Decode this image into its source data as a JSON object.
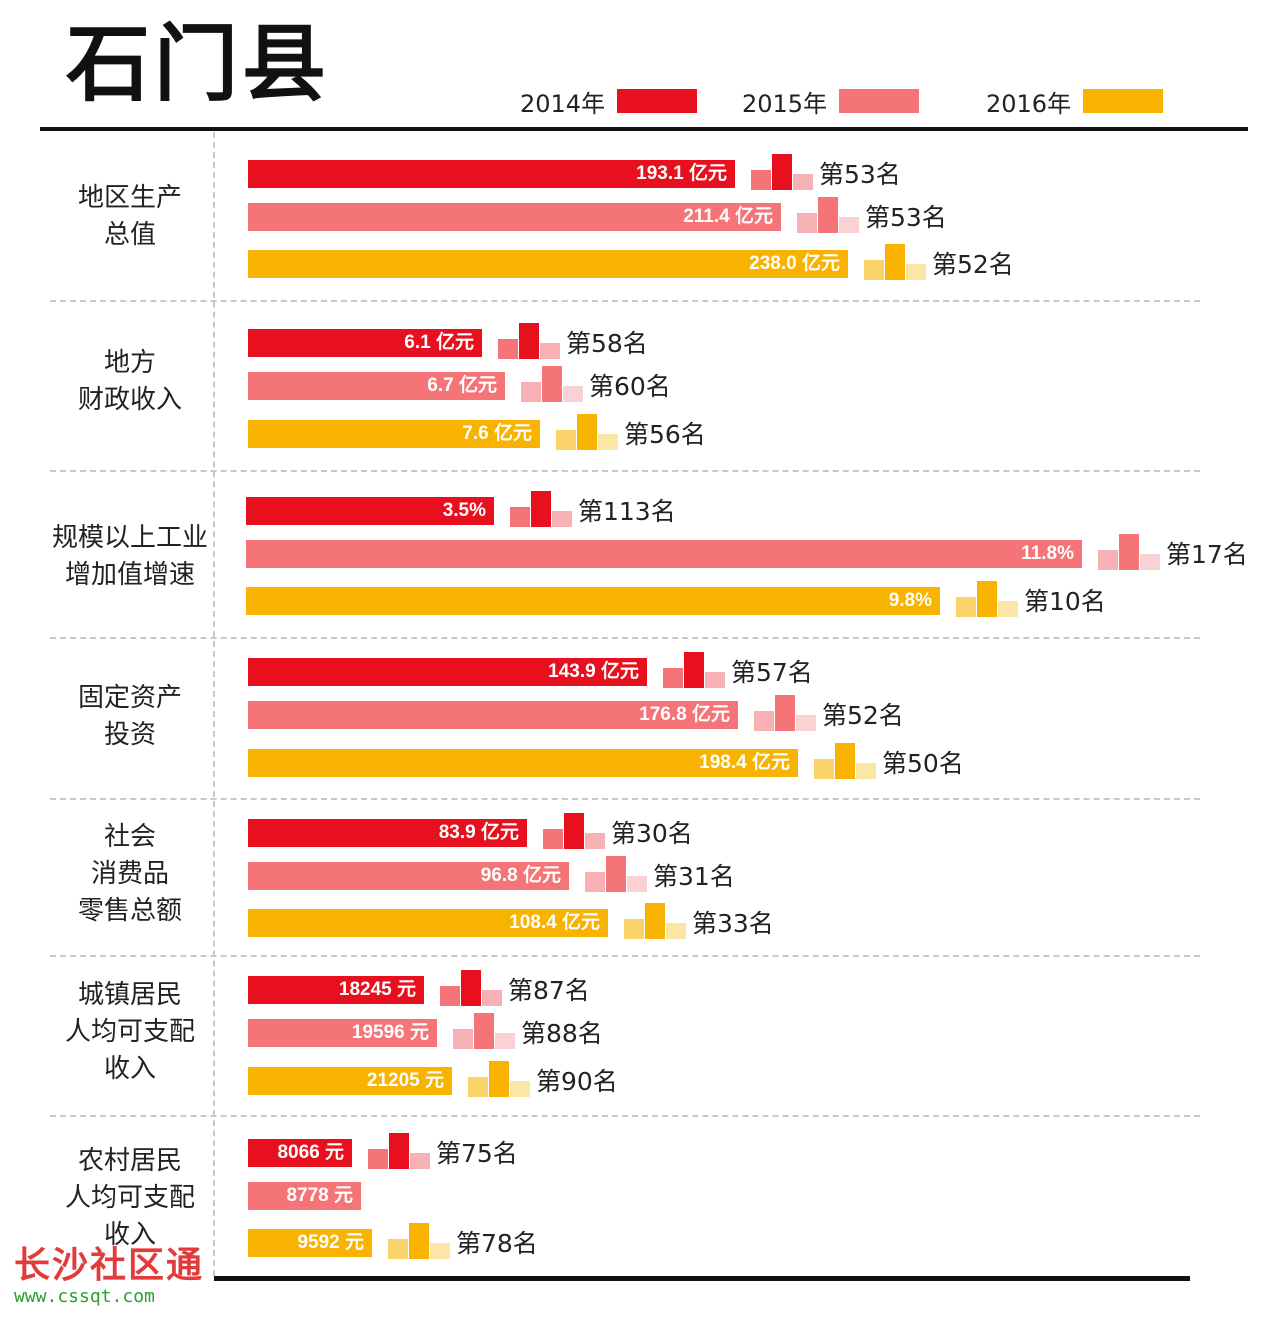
{
  "title": "石门县",
  "colors": {
    "2014": "#e8101e",
    "2015": "#f47478",
    "2016": "#f7b300",
    "2014_light": "#f47478",
    "2014_pale": "#f7b0b4",
    "2015_light": "#f7b0b4",
    "2015_pale": "#fbd2d4",
    "2016_light": "#fad46a",
    "2016_pale": "#fce6a6"
  },
  "legend": [
    {
      "label": "2014年",
      "key": "2014"
    },
    {
      "label": "2015年",
      "key": "2015"
    },
    {
      "label": "2016年",
      "key": "2016"
    }
  ],
  "chart_data": {
    "type": "bar",
    "orientation": "horizontal",
    "title": "石门县",
    "series_names": [
      "2014年",
      "2015年",
      "2016年"
    ],
    "groups": [
      {
        "category": "地区生产总值",
        "label_lines": [
          "地区生产",
          "总值"
        ],
        "rows": [
          {
            "year": "2014",
            "value": 193.1,
            "label": "193.1 亿元",
            "rank": "第53名"
          },
          {
            "year": "2015",
            "value": 211.4,
            "label": "211.4 亿元",
            "rank": "第53名"
          },
          {
            "year": "2016",
            "value": 238.0,
            "label": "238.0 亿元",
            "rank": "第52名"
          }
        ]
      },
      {
        "category": "地方财政收入",
        "label_lines": [
          "地方",
          "财政收入"
        ],
        "rows": [
          {
            "year": "2014",
            "value": 6.1,
            "label": "6.1 亿元",
            "rank": "第58名"
          },
          {
            "year": "2015",
            "value": 6.7,
            "label": "6.7 亿元",
            "rank": "第60名"
          },
          {
            "year": "2016",
            "value": 7.6,
            "label": "7.6 亿元",
            "rank": "第56名"
          }
        ]
      },
      {
        "category": "规模以上工业增加值增速",
        "label_lines": [
          "规模以上工业",
          "增加值增速"
        ],
        "rows": [
          {
            "year": "2014",
            "value": 3.5,
            "label": "3.5%",
            "rank": "第113名"
          },
          {
            "year": "2015",
            "value": 11.8,
            "label": "11.8%",
            "rank": "第17名"
          },
          {
            "year": "2016",
            "value": 9.8,
            "label": "9.8%",
            "rank": "第10名"
          }
        ]
      },
      {
        "category": "固定资产投资",
        "label_lines": [
          "固定资产",
          "投资"
        ],
        "rows": [
          {
            "year": "2014",
            "value": 143.9,
            "label": "143.9 亿元",
            "rank": "第57名"
          },
          {
            "year": "2015",
            "value": 176.8,
            "label": "176.8 亿元",
            "rank": "第52名"
          },
          {
            "year": "2016",
            "value": 198.4,
            "label": "198.4 亿元",
            "rank": "第50名"
          }
        ]
      },
      {
        "category": "社会消费品零售总额",
        "label_lines": [
          "社会",
          "消费品",
          "零售总额"
        ],
        "rows": [
          {
            "year": "2014",
            "value": 83.9,
            "label": "83.9 亿元",
            "rank": "第30名"
          },
          {
            "year": "2015",
            "value": 96.8,
            "label": "96.8 亿元",
            "rank": "第31名"
          },
          {
            "year": "2016",
            "value": 108.4,
            "label": "108.4 亿元",
            "rank": "第33名"
          }
        ]
      },
      {
        "category": "城镇居民人均可支配收入",
        "label_lines": [
          "城镇居民",
          "人均可支配",
          "收入"
        ],
        "rows": [
          {
            "year": "2014",
            "value": 18245,
            "label": "18245 元",
            "rank": "第87名"
          },
          {
            "year": "2015",
            "value": 19596,
            "label": "19596 元",
            "rank": "第88名"
          },
          {
            "year": "2016",
            "value": 21205,
            "label": "21205 元",
            "rank": "第90名"
          }
        ]
      },
      {
        "category": "农村居民人均可支配收入",
        "label_lines": [
          "农村居民",
          "人均可支配",
          "收入"
        ],
        "rows": [
          {
            "year": "2014",
            "value": 8066,
            "label": "8066 元",
            "rank": "第75名"
          },
          {
            "year": "2015",
            "value": 8778,
            "label": "8778 元",
            "rank": null
          },
          {
            "year": "2016",
            "value": 9592,
            "label": "9592 元",
            "rank": "第78名"
          }
        ]
      }
    ]
  },
  "watermark": {
    "brand": "长沙社区通",
    "url": "www.cssqt.com"
  }
}
